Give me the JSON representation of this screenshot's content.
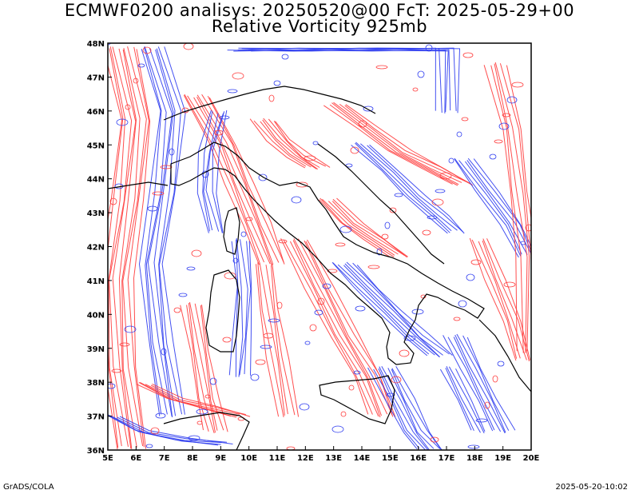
{
  "header": {
    "title_line1": "ECMWF0200 analisys: 20250520@00 FcT: 2025-05-29+00",
    "title_line2": "Relative Vorticity 925mb"
  },
  "map": {
    "lon_labels": [
      "5E",
      "6E",
      "7E",
      "8E",
      "9E",
      "10E",
      "11E",
      "12E",
      "13E",
      "14E",
      "15E",
      "16E",
      "17E",
      "18E",
      "19E",
      "20E"
    ],
    "lat_labels": [
      "36N",
      "37N",
      "38N",
      "39N",
      "40N",
      "41N",
      "42N",
      "43N",
      "44N",
      "45N",
      "46N",
      "47N",
      "48N"
    ],
    "lon_range": [
      5,
      20
    ],
    "lat_range": [
      36,
      48
    ],
    "colors": {
      "positive": "#ff3b3b",
      "negative": "#2f3df0",
      "coastline": "#000000",
      "background": "#ffffff"
    }
  },
  "footer": {
    "left": "GrADS/COLA",
    "right": "2025-05-20-10:02"
  }
}
